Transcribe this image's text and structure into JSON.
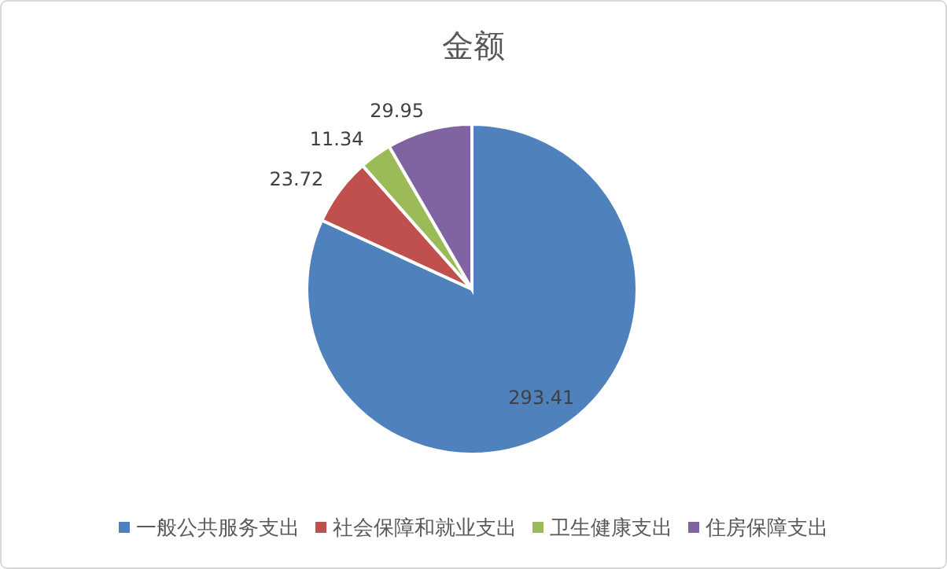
{
  "chart_data": {
    "type": "pie",
    "title": "金额",
    "categories": [
      "一般公共服务支出",
      "社会保障和就业支出",
      "卫生健康支出",
      "住房保障支出"
    ],
    "values": [
      293.41,
      23.72,
      11.34,
      29.95
    ],
    "colors": [
      "#4f81bd",
      "#c0504d",
      "#9bbb59",
      "#8064a2"
    ],
    "data_labels": true,
    "legend": "bottom"
  }
}
